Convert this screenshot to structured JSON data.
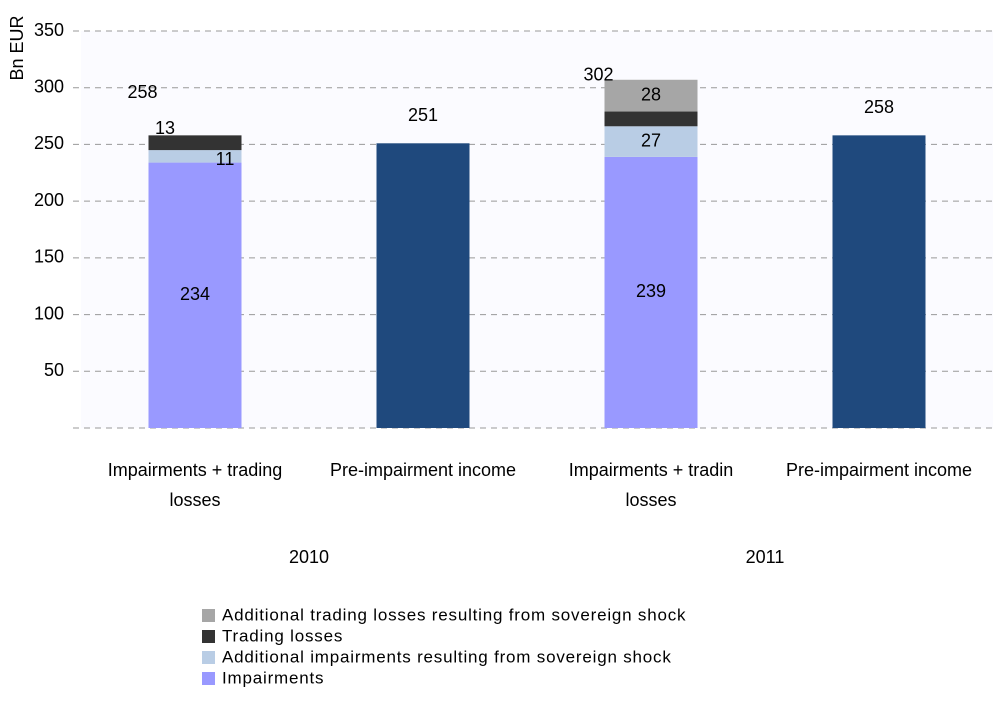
{
  "chart_data": {
    "type": "stacked_bar",
    "ylabel": "Bn EUR",
    "categories": [
      "Impairments + trading losses",
      "Pre-impairment income",
      "Impairments + tradin losses",
      "Pre-impairment income"
    ],
    "groups": [
      "2010",
      "2011"
    ],
    "series": [
      {
        "name": "Impairments",
        "color": "#9999ff",
        "values": [
          234,
          null,
          239,
          null
        ]
      },
      {
        "name": "Additional impairments resulting from sovereign shock",
        "color": "#b9cde5",
        "values": [
          11,
          null,
          27,
          null
        ]
      },
      {
        "name": "Trading losses",
        "color": "#333333",
        "values": [
          13,
          null,
          13,
          null
        ]
      },
      {
        "name": "Additional trading losses resulting from sovereign shock",
        "color": "#a6a6a6",
        "values": [
          null,
          null,
          28,
          null
        ]
      },
      {
        "color": "#1f497d",
        "values": [
          null,
          251,
          null,
          258
        ]
      }
    ],
    "totals": [
      258,
      null,
      302,
      null
    ],
    "ylim": [
      0,
      350
    ],
    "yticks": [
      50,
      100,
      150,
      200,
      250,
      300,
      350
    ],
    "grid": true
  }
}
